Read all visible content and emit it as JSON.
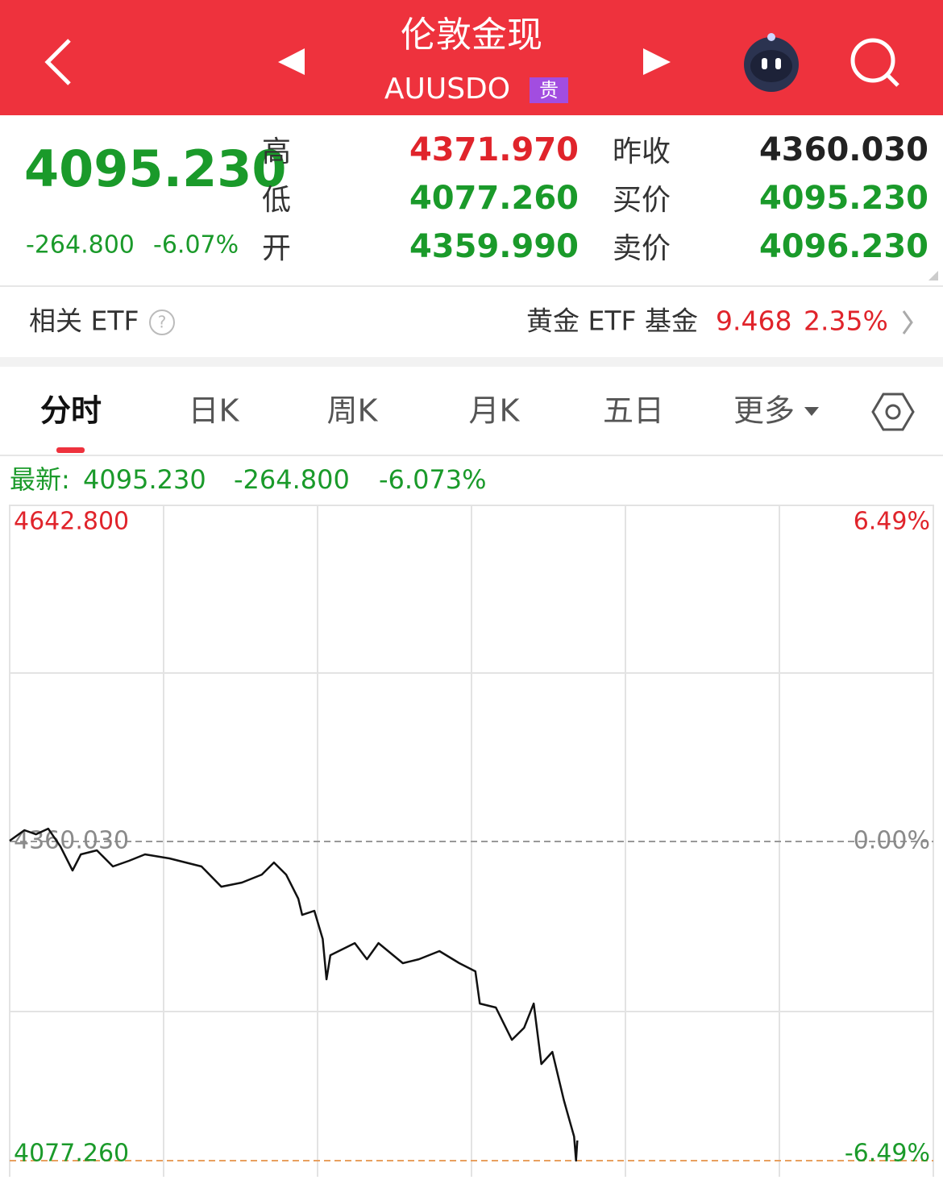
{
  "header": {
    "title": "伦敦金现",
    "code": "AUUSDO",
    "badge": "贵"
  },
  "quote": {
    "price": "4095.230",
    "change": "-264.800",
    "change_pct": "-6.07%",
    "fields": [
      {
        "label": "高",
        "value": "4371.970"
      },
      {
        "label": "低",
        "value": "4077.260"
      },
      {
        "label": "开",
        "value": "4359.990"
      },
      {
        "label": "昨收",
        "value": "4360.030"
      },
      {
        "label": "买价",
        "value": "4095.230"
      },
      {
        "label": "卖价",
        "value": "4096.230"
      }
    ]
  },
  "etf": {
    "label": "相关 ETF",
    "name": "黄金 ETF 基金",
    "price": "9.468",
    "change_pct": "2.35%"
  },
  "tabs": [
    "分时",
    "日K",
    "周K",
    "月K",
    "五日",
    "更多"
  ],
  "latest": {
    "label": "最新:",
    "price": "4095.230",
    "change": "-264.800",
    "change_pct": "-6.073%"
  },
  "chart_data": {
    "type": "line",
    "color": "#111111",
    "x": [
      0,
      23,
      41,
      60,
      79,
      98,
      111,
      136,
      161,
      186,
      211,
      249,
      299,
      330,
      362,
      393,
      412,
      431,
      450,
      456,
      475,
      488,
      494,
      500,
      538,
      557,
      575,
      613,
      638,
      670,
      701,
      726,
      733,
      758,
      783,
      802,
      817,
      829,
      846,
      864,
      871,
      880,
      883,
      885
    ],
    "values": [
      4360.7,
      4370.0,
      4366.4,
      4371.4,
      4355.7,
      4334.3,
      4348.6,
      4352.2,
      4337.9,
      4342.9,
      4348.6,
      4345.0,
      4337.9,
      4320.0,
      4323.6,
      4330.7,
      4341.4,
      4330.7,
      4309.3,
      4295.0,
      4298.6,
      4273.6,
      4237.9,
      4259.3,
      4270.0,
      4255.7,
      4270.0,
      4252.2,
      4255.7,
      4262.9,
      4252.2,
      4245.0,
      4216.4,
      4212.9,
      4184.3,
      4195.0,
      4216.4,
      4162.9,
      4173.6,
      4130.8,
      4116.5,
      4098.6,
      4077.3,
      4095.2
    ],
    "xlim": [
      0,
      1440
    ],
    "ylim": [
      4077.26,
      4642.8
    ],
    "yticks": [
      {
        "value": 4642.8,
        "label": "4642.800"
      },
      {
        "value": 4360.03,
        "label": "4360.030"
      },
      {
        "value": 4077.26,
        "label": "4077.260"
      }
    ],
    "y2lim": [
      -6.49,
      6.49
    ],
    "y2ticks": [
      {
        "value": 6.49,
        "label": "6.49%"
      },
      {
        "value": 0,
        "label": "0.00%"
      },
      {
        "value": -6.49,
        "label": "-6.49%"
      }
    ]
  }
}
